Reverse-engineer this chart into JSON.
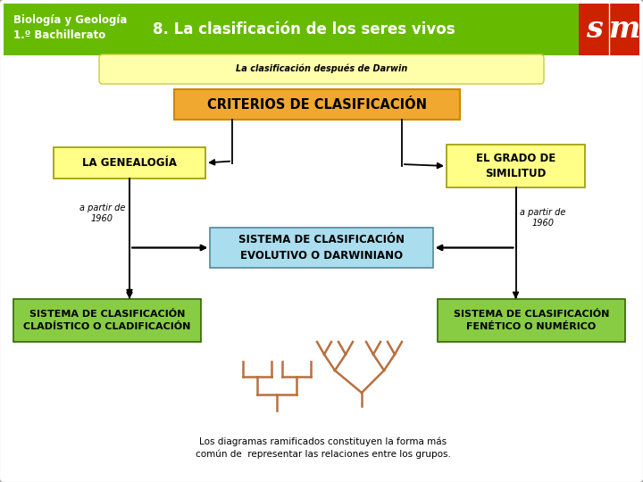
{
  "bg_color": "#ffffff",
  "header_green": "#66bb00",
  "header_red": "#cc2200",
  "header_title": "8. La clasificación de los seres vivos",
  "header_subtitle": "Biología y Geología\n1.º Bachillerato",
  "yellow_subtitle_text": "La clasificación después de Darwin",
  "yellow_subtitle_bg": "#ffffaa",
  "criterios_text": "CRITERIOS DE CLASIFICACIÓN",
  "criterios_bg": "#f0a830",
  "genealogia_text": "LA GENEALOGÍA",
  "genealogia_bg": "#ffff88",
  "grado_text": "EL GRADO DE\nSIMILITUD",
  "grado_bg": "#ffff88",
  "evolutivo_text": "SISTEMA DE CLASIFICACIÓN\nEVOLUTIVO O DARWINIANO",
  "evolutivo_bg": "#aaddee",
  "cladistico_text": "SISTEMA DE CLASIFICACIÓN\nCLADÍSTICO O CLADIFICACIÓN",
  "cladistico_bg": "#88cc44",
  "fenetico_text": "SISTEMA DE CLASIFICACIÓN\nFENÉTICO O NUMÉRICO",
  "fenetico_bg": "#88cc44",
  "a_partir_text": "a partir de\n1960",
  "tree_color": "#b87040",
  "caption_text": "Los diagramas ramificados constituyen la forma más\ncomún de  representar las relaciones entre los grupos.",
  "outer_border_color": "#999999",
  "line_color": "#000000",
  "figsize": [
    7.2,
    5.4
  ],
  "dpi": 100
}
